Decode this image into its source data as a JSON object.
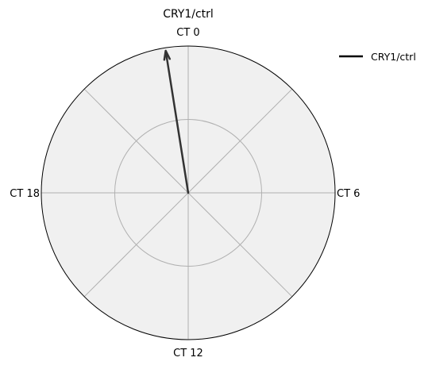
{
  "chart_data": {
    "type": "polar-vector",
    "title": "CRY1/ctrl",
    "angular_axis": {
      "unit": "CT (circadian hours)",
      "period": 24,
      "direction": "clockwise",
      "zero_location": "top",
      "tick_labels": [
        {
          "ct": 0,
          "label": "CT 0"
        },
        {
          "ct": 6,
          "label": "CT 6"
        },
        {
          "ct": 12,
          "label": "CT 12"
        },
        {
          "ct": 18,
          "label": "CT 18"
        }
      ],
      "gridline_degrees": [
        0,
        45,
        90,
        135,
        180,
        225,
        270,
        315
      ]
    },
    "radial_axis": {
      "rmax": 1.0,
      "grid_rings": [
        0.5
      ],
      "tick_labels_shown": false
    },
    "series": [
      {
        "name": "CRY1/ctrl",
        "phase_ct": 23.4,
        "amplitude": 0.98,
        "color": "#333333"
      }
    ],
    "legend": {
      "placement": "top-right",
      "entries": [
        "CRY1/ctrl"
      ],
      "line_color": "#000000"
    },
    "colors": {
      "axes_face": "#f0f0f0",
      "grid": "#b0b0b0",
      "outline": "#000000"
    }
  }
}
